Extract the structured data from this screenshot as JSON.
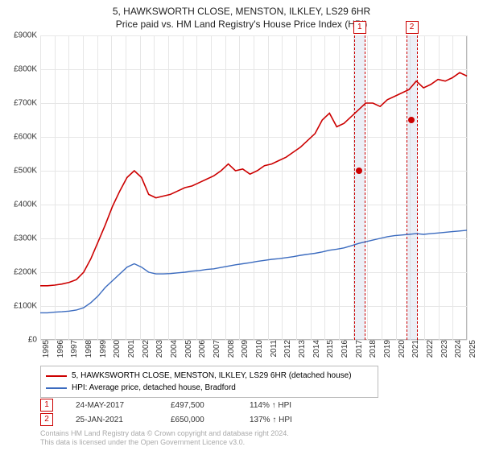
{
  "title": "5, HAWKSWORTH CLOSE, MENSTON, ILKLEY, LS29 6HR",
  "subtitle": "Price paid vs. HM Land Registry's House Price Index (HPI)",
  "chart": {
    "type": "line",
    "background_color": "#ffffff",
    "grid_color": "#e6e6e6",
    "border_color": "#bbbbbb",
    "x_start_year": 1995,
    "x_end_year": 2025,
    "x_tick_step": 1,
    "ylim": [
      0,
      900000
    ],
    "ytick_step": 100000,
    "ylabels": [
      "£0",
      "£100K",
      "£200K",
      "£300K",
      "£400K",
      "£500K",
      "£600K",
      "£700K",
      "£800K",
      "£900K"
    ],
    "label_fontsize": 10,
    "series": [
      {
        "name": "property",
        "color": "#cc0000",
        "width": 1.6,
        "values": [
          160000,
          160000,
          162000,
          165000,
          170000,
          178000,
          200000,
          240000,
          290000,
          340000,
          395000,
          440000,
          480000,
          500000,
          480000,
          430000,
          420000,
          425000,
          430000,
          440000,
          450000,
          455000,
          465000,
          475000,
          485000,
          500000,
          520000,
          500000,
          505000,
          490000,
          500000,
          515000,
          520000,
          530000,
          540000,
          555000,
          570000,
          590000,
          610000,
          650000,
          670000,
          630000,
          640000,
          660000,
          680000,
          700000,
          700000,
          690000,
          710000,
          720000,
          730000,
          740000,
          765000,
          745000,
          755000,
          770000,
          765000,
          775000,
          790000,
          780000
        ]
      },
      {
        "name": "hpi",
        "color": "#3b6bbf",
        "width": 1.4,
        "values": [
          80000,
          80000,
          82000,
          83000,
          85000,
          88000,
          95000,
          110000,
          130000,
          155000,
          175000,
          195000,
          215000,
          225000,
          215000,
          200000,
          195000,
          195000,
          196000,
          198000,
          200000,
          203000,
          205000,
          208000,
          210000,
          214000,
          218000,
          222000,
          225000,
          228000,
          232000,
          235000,
          238000,
          240000,
          243000,
          246000,
          250000,
          253000,
          256000,
          260000,
          265000,
          268000,
          272000,
          278000,
          285000,
          290000,
          295000,
          300000,
          305000,
          308000,
          310000,
          312000,
          314000,
          312000,
          314000,
          316000,
          318000,
          320000,
          322000,
          324000
        ]
      }
    ],
    "markers": [
      {
        "num": "1",
        "year": 2017.4,
        "value": 500000,
        "dot_color": "#cc0000"
      },
      {
        "num": "2",
        "year": 2021.07,
        "value": 650000,
        "dot_color": "#cc0000"
      }
    ],
    "marker_band_color": "rgba(200,210,230,0.35)",
    "marker_border_color": "#cc0000"
  },
  "legend": {
    "items": [
      {
        "label": "5, HAWKSWORTH CLOSE, MENSTON, ILKLEY, LS29 6HR (detached house)",
        "color": "#cc0000"
      },
      {
        "label": "HPI: Average price, detached house, Bradford",
        "color": "#3b6bbf"
      }
    ]
  },
  "sales": [
    {
      "num": "1",
      "date": "24-MAY-2017",
      "price": "£497,500",
      "pct": "114% ↑ HPI"
    },
    {
      "num": "2",
      "date": "25-JAN-2021",
      "price": "£650,000",
      "pct": "137% ↑ HPI"
    }
  ],
  "footer": {
    "line1": "Contains HM Land Registry data © Crown copyright and database right 2024.",
    "line2": "This data is licensed under the Open Government Licence v3.0."
  }
}
